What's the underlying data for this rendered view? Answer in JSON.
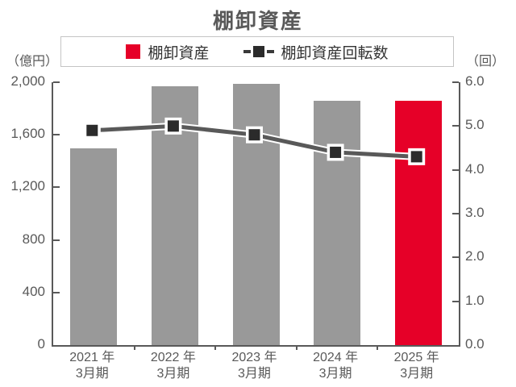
{
  "title": "棚卸資産",
  "legend": {
    "items": [
      {
        "label": "棚卸資産",
        "type": "bar",
        "swatch_color": "#e60028"
      },
      {
        "label": "棚卸資産回転数",
        "type": "line",
        "swatch_color": "#2b2b2b"
      }
    ]
  },
  "units": {
    "left": "（億円）",
    "right": "（回）"
  },
  "colors": {
    "bar_gray": "#999999",
    "bar_red": "#e60028",
    "line": "#595959",
    "marker_fill": "#2b2b2b",
    "marker_border": "#ffffff",
    "axis": "#595959",
    "text": "#595959",
    "legend_text": "#333333",
    "legend_border": "#c4c4c4"
  },
  "chart_data": {
    "type": "bar+line combo",
    "title": "棚卸資産",
    "categories_line1": [
      "2021 年",
      "2022 年",
      "2023 年",
      "2024 年",
      "2025 年"
    ],
    "categories_line2": [
      "3月期",
      "3月期",
      "3月期",
      "3月期",
      "3月期"
    ],
    "series": [
      {
        "name": "棚卸資産",
        "type": "bar",
        "axis": "left",
        "values": [
          1500,
          1970,
          1990,
          1860,
          1860
        ],
        "bar_colors": [
          "#999999",
          "#999999",
          "#999999",
          "#999999",
          "#e60028"
        ]
      },
      {
        "name": "棚卸資産回転数",
        "type": "line",
        "axis": "right",
        "values": [
          4.9,
          5.0,
          4.8,
          4.4,
          4.3
        ],
        "color": "#595959"
      }
    ],
    "left_axis": {
      "unit": "（億円）",
      "min": 0,
      "max": 2000,
      "step": 400,
      "tick_labels": [
        "0",
        "400",
        "800",
        "1,200",
        "1,600",
        "2,000"
      ]
    },
    "right_axis": {
      "unit": "（回）",
      "min": 0,
      "max": 6,
      "step": 1,
      "tick_labels": [
        "0.0",
        "1.0",
        "2.0",
        "3.0",
        "4.0",
        "5.0",
        "6.0"
      ]
    },
    "grid": false,
    "legend_position": "top"
  }
}
